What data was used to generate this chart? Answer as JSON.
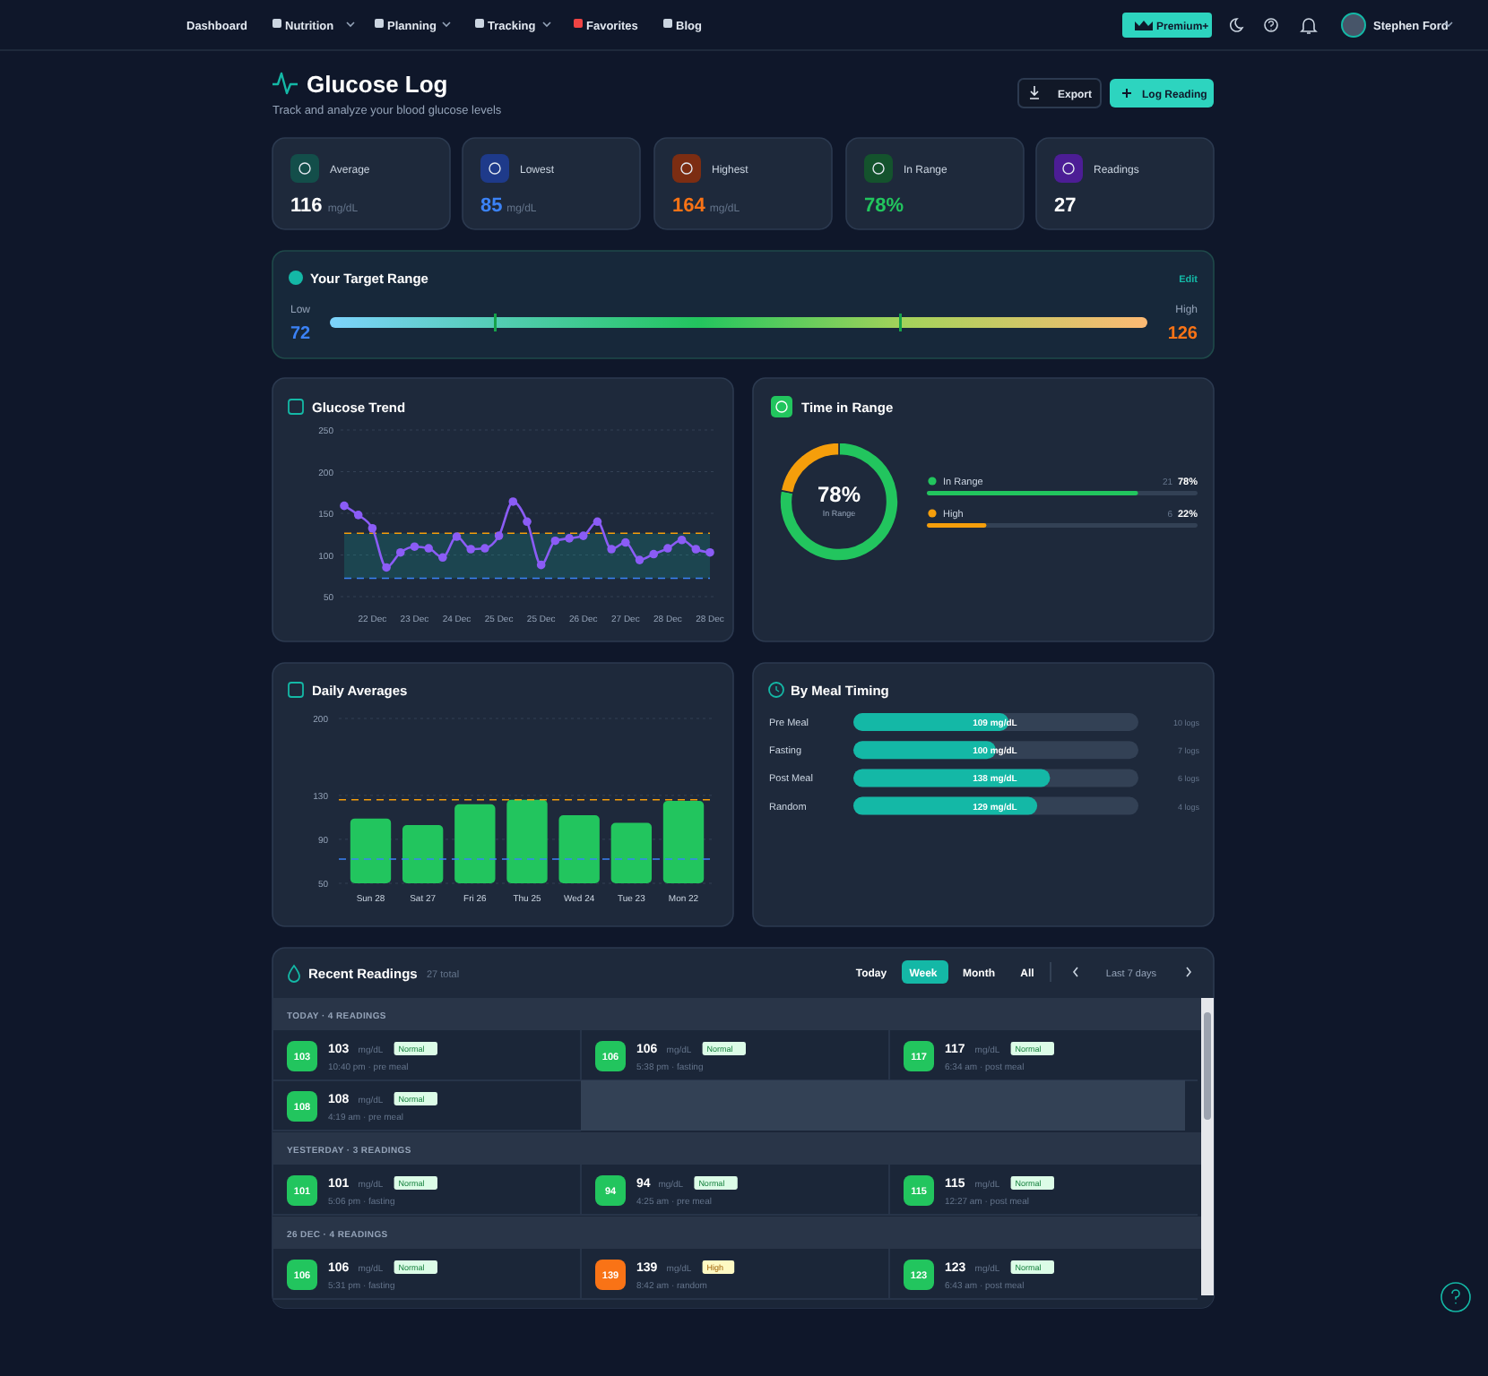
{
  "chart_data": [
    {
      "type": "other",
      "title": "Glucose Log",
      "subtitle": "Track and analyze your blood glucose levels",
      "annotations": [
        "Dashboard",
        "Nutrition",
        "Planning",
        "Tracking",
        "Favorites",
        "Blog",
        "Premium+",
        "Stephen Ford",
        "Export",
        "Log Reading"
      ]
    },
    {
      "type": "other",
      "categories": [
        "Average",
        "Lowest",
        "Highest",
        "In Range",
        "Readings"
      ],
      "value_labels": [
        "116 mg/dL",
        "85 mg/dL",
        "164 mg/dL",
        "78%",
        "27"
      ]
    },
    {
      "type": "other",
      "title": "Your Target Range",
      "annotations": [
        "Edit"
      ],
      "categories": [
        "Low",
        "High"
      ],
      "value_labels": [
        "72",
        "126"
      ]
    },
    {
      "type": "line",
      "title": "Glucose Trend",
      "categories": [
        null,
        null,
        "22 Dec",
        null,
        null,
        "23 Dec",
        null,
        null,
        "24 Dec",
        null,
        null,
        "25 Dec",
        null,
        null,
        "25 Dec",
        null,
        null,
        "26 Dec",
        null,
        null,
        "27 Dec",
        null,
        null,
        "28 Dec",
        null,
        null,
        "28 Dec"
      ],
      "series": [
        {
          "color": "#8b5cf6",
          "values": [
            159,
            148,
            132,
            85,
            103,
            110,
            108,
            97,
            122,
            107,
            108,
            123,
            164,
            140,
            88,
            117,
            120,
            123,
            140,
            107,
            115,
            94,
            101,
            108,
            118,
            107,
            103
          ]
        }
      ],
      "ylim": [
        50,
        250
      ],
      "yticks": [
        50,
        100,
        150,
        200,
        250
      ],
      "grid": "y",
      "marker": "circle",
      "ref_lines": [
        {
          "axis": "y",
          "value": 126,
          "color": "#f59e0b",
          "line_style": "dashed"
        },
        {
          "axis": "y",
          "value": 72,
          "color": "#3b82f6",
          "line_style": "dashed"
        }
      ],
      "bands": [
        {
          "axis": "y",
          "from": 72,
          "to": 126,
          "color": "#14b8a6"
        }
      ]
    },
    {
      "type": "donut",
      "title": "Time in Range",
      "categories": [
        "In Range",
        "High"
      ],
      "values": [
        78,
        22
      ],
      "colors": [
        "#22c55e",
        "#f59e0b"
      ],
      "value_labels": [
        "78%",
        "22%"
      ],
      "annotations": [
        "21",
        "6"
      ],
      "legend": "right"
    },
    {
      "type": "bar",
      "title": "Daily Averages",
      "categories": [
        "Sun 28",
        "Sat 27",
        "Fri 26",
        "Thu 25",
        "Wed 24",
        "Tue 23",
        "Mon 22"
      ],
      "values": [
        109,
        103,
        122,
        126,
        112,
        105,
        125
      ],
      "color": "#22c55e",
      "ylim": [
        50,
        200
      ],
      "yticks": [
        50,
        90,
        130,
        200
      ],
      "grid": "y",
      "ref_lines": [
        {
          "axis": "y",
          "value": 126,
          "color": "#f59e0b",
          "line_style": "dashed"
        },
        {
          "axis": "y",
          "value": 72,
          "color": "#3b82f6",
          "line_style": "dashed"
        }
      ]
    },
    {
      "type": "bar",
      "title": "By Meal Timing",
      "orientation": "horizontal",
      "categories": [
        "Pre Meal",
        "Fasting",
        "Post Meal",
        "Random"
      ],
      "values": [
        109,
        100,
        138,
        129
      ],
      "value_labels": [
        "109 mg/dL",
        "100 mg/dL",
        "138 mg/dL",
        "129 mg/dL"
      ],
      "color": "#14b8a6",
      "xlim": [
        0,
        200
      ],
      "tick_labels": false,
      "annotations": [
        "10 logs",
        "7 logs",
        "6 logs",
        "4 logs"
      ]
    },
    {
      "type": "other",
      "title": "Recent Readings",
      "subtitle": "27 total",
      "annotations": [
        "Today",
        "Week",
        "Month",
        "All",
        "Last 7 days"
      ]
    },
    {
      "type": "other",
      "title": "TODAY · 4 READINGS",
      "ylabel": "mg/dL",
      "value_labels": [
        "103",
        "106",
        "117",
        "108"
      ],
      "annotations": [
        "Normal",
        "Normal",
        "Normal",
        "Normal"
      ],
      "categories": [
        "10:40 pm · pre meal",
        "5:38 pm · fasting",
        "6:34 am · post meal",
        "4:19 am · pre meal"
      ],
      "colors": [
        "#22c55e",
        "#22c55e",
        "#22c55e",
        "#22c55e"
      ]
    },
    {
      "type": "other",
      "title": "YESTERDAY · 3 READINGS",
      "ylabel": "mg/dL",
      "value_labels": [
        "101",
        "94",
        "115"
      ],
      "annotations": [
        "Normal",
        "Normal",
        "Normal"
      ],
      "categories": [
        "5:06 pm · fasting",
        "4:25 am · pre meal",
        "12:27 am · post meal"
      ],
      "colors": [
        "#22c55e",
        "#22c55e",
        "#22c55e"
      ]
    },
    {
      "type": "other",
      "title": "26 DEC · 4 READINGS",
      "ylabel": "mg/dL",
      "value_labels": [
        "106",
        "139",
        "123"
      ],
      "annotations": [
        "Normal",
        "High",
        "Normal"
      ],
      "categories": [
        "5:31 pm · fasting",
        "8:42 am · random",
        "6:43 am · post meal"
      ],
      "colors": [
        "#22c55e",
        "#f97316",
        "#22c55e"
      ]
    }
  ]
}
